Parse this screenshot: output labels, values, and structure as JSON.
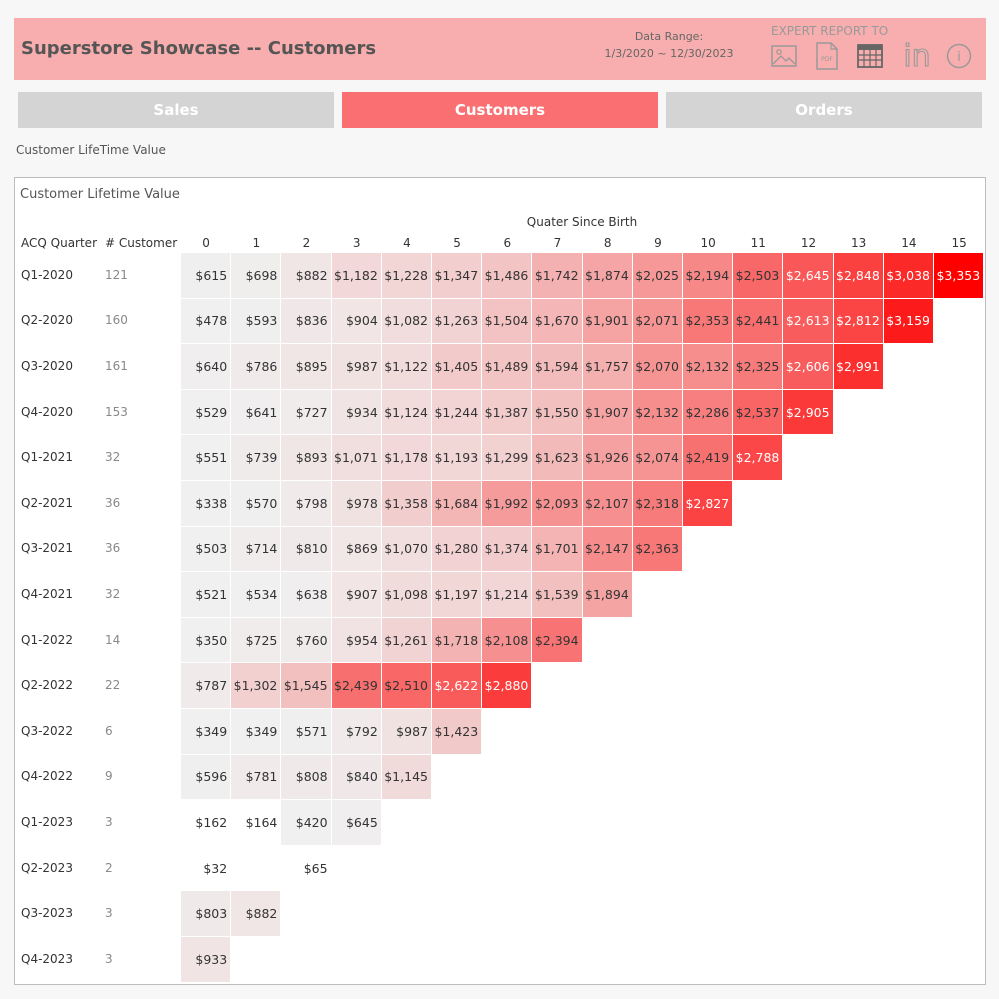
{
  "header": {
    "title": "Superstore Showcase -- Customers",
    "range_label": "Data Range:",
    "range_value": "1/3/2020 ~ 12/30/2023",
    "export_label": "EXPERT REPORT TO",
    "icons": [
      "image-icon",
      "pdf-icon",
      "table-icon",
      "linkedin-icon",
      "info-icon"
    ],
    "pdf_text": "PDF",
    "linkedin_text": "in",
    "info_text": "i"
  },
  "tabs": [
    {
      "label": "Sales",
      "active": false
    },
    {
      "label": "Customers",
      "active": true
    },
    {
      "label": "Orders",
      "active": false
    }
  ],
  "subtitle": "Customer LifeTime Value",
  "panel_title": "Customer Lifetime Value",
  "chart_data": {
    "type": "heatmap",
    "title": "Customer Lifetime Value",
    "xlabel": "Quater Since Birth",
    "row_header": "ACQ Quarter",
    "count_header": "# Customer",
    "columns": [
      "0",
      "1",
      "2",
      "3",
      "4",
      "5",
      "6",
      "7",
      "8",
      "9",
      "10",
      "11",
      "12",
      "13",
      "14",
      "15"
    ],
    "color_low": "#f0f0f0",
    "color_high": "#ff0000",
    "rows": [
      {
        "quarter": "Q1-2020",
        "customers": "121",
        "values": [
          615,
          698,
          882,
          1182,
          1228,
          1347,
          1486,
          1742,
          1874,
          2025,
          2194,
          2503,
          2645,
          2848,
          3038,
          3353
        ]
      },
      {
        "quarter": "Q2-2020",
        "customers": "160",
        "values": [
          478,
          593,
          836,
          904,
          1082,
          1263,
          1504,
          1670,
          1901,
          2071,
          2353,
          2441,
          2613,
          2812,
          3159
        ]
      },
      {
        "quarter": "Q3-2020",
        "customers": "161",
        "values": [
          640,
          786,
          895,
          987,
          1122,
          1405,
          1489,
          1594,
          1757,
          2070,
          2132,
          2325,
          2606,
          2991
        ]
      },
      {
        "quarter": "Q4-2020",
        "customers": "153",
        "values": [
          529,
          641,
          727,
          934,
          1124,
          1244,
          1387,
          1550,
          1907,
          2132,
          2286,
          2537,
          2905
        ]
      },
      {
        "quarter": "Q1-2021",
        "customers": "32",
        "values": [
          551,
          739,
          893,
          1071,
          1178,
          1193,
          1299,
          1623,
          1926,
          2074,
          2419,
          2788
        ]
      },
      {
        "quarter": "Q2-2021",
        "customers": "36",
        "values": [
          338,
          570,
          798,
          978,
          1358,
          1684,
          1992,
          2093,
          2107,
          2318,
          2827
        ]
      },
      {
        "quarter": "Q3-2021",
        "customers": "36",
        "values": [
          503,
          714,
          810,
          869,
          1070,
          1280,
          1374,
          1701,
          2147,
          2363
        ]
      },
      {
        "quarter": "Q4-2021",
        "customers": "32",
        "values": [
          521,
          534,
          638,
          907,
          1098,
          1197,
          1214,
          1539,
          1894
        ]
      },
      {
        "quarter": "Q1-2022",
        "customers": "14",
        "values": [
          350,
          725,
          760,
          954,
          1261,
          1718,
          2108,
          2394
        ]
      },
      {
        "quarter": "Q2-2022",
        "customers": "22",
        "values": [
          787,
          1302,
          1545,
          2439,
          2510,
          2622,
          2880
        ]
      },
      {
        "quarter": "Q3-2022",
        "customers": "6",
        "values": [
          349,
          349,
          571,
          792,
          987,
          1423
        ]
      },
      {
        "quarter": "Q4-2022",
        "customers": "9",
        "values": [
          596,
          781,
          808,
          840,
          1145
        ]
      },
      {
        "quarter": "Q1-2023",
        "customers": "3",
        "values": [
          162,
          164,
          420,
          645
        ]
      },
      {
        "quarter": "Q2-2023",
        "customers": "2",
        "values": [
          32,
          null,
          65
        ]
      },
      {
        "quarter": "Q3-2023",
        "customers": "3",
        "values": [
          803,
          882
        ]
      },
      {
        "quarter": "Q4-2023",
        "customers": "3",
        "values": [
          933
        ]
      }
    ]
  }
}
